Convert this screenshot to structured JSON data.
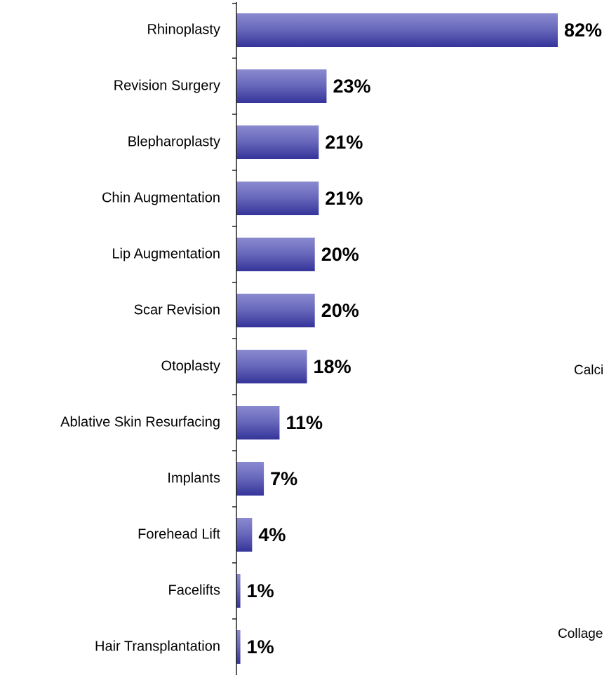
{
  "chart_data": {
    "type": "barh",
    "categories": [
      "Rhinoplasty",
      "Revision Surgery",
      "Blepharoplasty",
      "Chin Augmentation",
      "Lip Augmentation",
      "Scar Revision",
      "Otoplasty",
      "Ablative Skin Resurfacing",
      "Implants",
      "Forehead Lift",
      "Facelifts",
      "Hair Transplantation"
    ],
    "values": [
      82,
      23,
      21,
      21,
      20,
      20,
      18,
      11,
      7,
      4,
      1,
      1
    ],
    "value_labels": [
      "82%",
      "23%",
      "21%",
      "21%",
      "20%",
      "20%",
      "18%",
      "11%",
      "7%",
      "4%",
      "1%",
      "1%"
    ],
    "color": "#34349a",
    "xlim": [
      0,
      82
    ],
    "annotations": [
      "Calci",
      "Collage"
    ]
  }
}
